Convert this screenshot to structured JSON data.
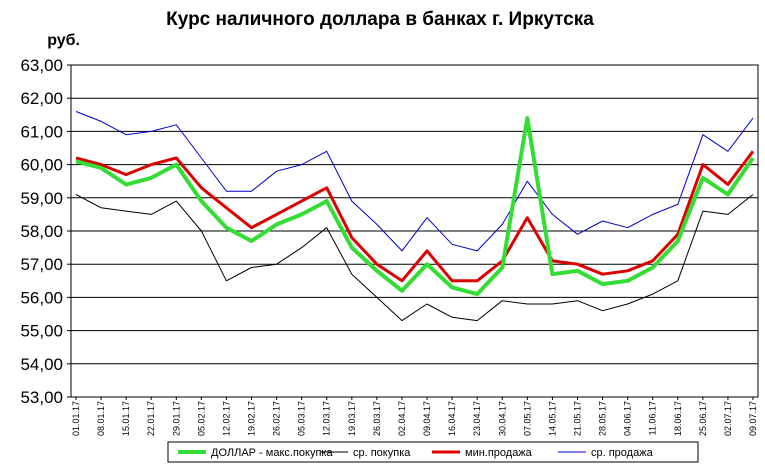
{
  "chart_data": {
    "type": "line",
    "title": "Курс наличного доллара  в банках г. Иркутска",
    "ylabel": "руб.",
    "ylim": [
      53,
      63
    ],
    "yticks": [
      "53,00",
      "54,00",
      "55,00",
      "56,00",
      "57,00",
      "58,00",
      "59,00",
      "60,00",
      "61,00",
      "62,00",
      "63,00"
    ],
    "grid": "horizontal",
    "legend_position": "bottom",
    "x": [
      "01.01.17",
      "08.01.17",
      "15.01.17",
      "22.01.17",
      "29.01.17",
      "05.02.17",
      "12.02.17",
      "19.02.17",
      "26.02.17",
      "05.03.17",
      "12.03.17",
      "19.03.17",
      "26.03.17",
      "02.04.17",
      "09.04.17",
      "16.04.17",
      "23.04.17",
      "30.04.17",
      "07.05.17",
      "14.05.17",
      "21.05.17",
      "28.05.17",
      "04.06.17",
      "11.06.17",
      "18.06.17",
      "25.06.17",
      "02.07.17",
      "09.07.17"
    ],
    "series": [
      {
        "name": "ДОЛЛАР - макс.покупка",
        "color": "#33dd33",
        "values": [
          60.1,
          59.9,
          59.4,
          59.6,
          60.0,
          58.9,
          58.1,
          57.7,
          58.2,
          58.5,
          58.9,
          57.5,
          56.8,
          56.2,
          57.0,
          56.3,
          56.1,
          56.9,
          61.4,
          56.7,
          56.8,
          56.4,
          56.5,
          56.9,
          57.7,
          59.6,
          59.1,
          60.2
        ]
      },
      {
        "name": "ср. покупка",
        "color": "#000000",
        "values": [
          59.1,
          58.7,
          58.6,
          58.5,
          58.9,
          58.0,
          56.5,
          56.9,
          57.0,
          57.5,
          58.1,
          56.7,
          56.0,
          55.3,
          55.8,
          55.4,
          55.3,
          55.9,
          55.8,
          55.8,
          55.9,
          55.6,
          55.8,
          56.1,
          56.5,
          58.6,
          58.5,
          59.1
        ]
      },
      {
        "name": "мин.продажа",
        "color": "#dd0000",
        "values": [
          60.2,
          60.0,
          59.7,
          60.0,
          60.2,
          59.3,
          58.7,
          58.1,
          58.5,
          58.9,
          59.3,
          57.8,
          57.0,
          56.5,
          57.4,
          56.5,
          56.5,
          57.1,
          58.4,
          57.1,
          57.0,
          56.7,
          56.8,
          57.1,
          57.9,
          60.0,
          59.4,
          60.4
        ]
      },
      {
        "name": "ср. продажа",
        "color": "#0000cc",
        "values": [
          61.6,
          61.3,
          60.9,
          61.0,
          61.2,
          60.2,
          59.2,
          59.2,
          59.8,
          60.0,
          60.4,
          58.9,
          58.2,
          57.4,
          58.4,
          57.6,
          57.4,
          58.2,
          59.5,
          58.5,
          57.9,
          58.3,
          58.1,
          58.5,
          58.8,
          60.9,
          60.4,
          61.4
        ]
      }
    ]
  }
}
